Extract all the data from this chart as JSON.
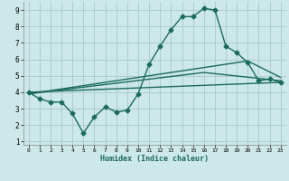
{
  "xlabel": "Humidex (Indice chaleur)",
  "bg_color": "#cce8e8",
  "grid_color": "#aac8c8",
  "line_color": "#1a6b5a",
  "xlim": [
    -0.5,
    23.5
  ],
  "ylim": [
    0.8,
    9.5
  ],
  "xticks": [
    0,
    1,
    2,
    3,
    4,
    5,
    6,
    7,
    8,
    9,
    10,
    11,
    12,
    13,
    14,
    15,
    16,
    17,
    18,
    19,
    20,
    21,
    22,
    23
  ],
  "yticks": [
    1,
    2,
    3,
    4,
    5,
    6,
    7,
    8,
    9
  ],
  "series1_x": [
    0,
    1,
    2,
    3,
    4,
    5,
    6,
    7,
    8,
    9,
    10,
    11,
    12,
    13,
    14,
    15,
    16,
    17,
    18,
    19,
    20,
    21,
    22,
    23
  ],
  "series1_y": [
    4.0,
    3.6,
    3.4,
    3.4,
    2.7,
    1.5,
    2.5,
    3.1,
    2.8,
    2.9,
    3.9,
    5.7,
    6.8,
    7.8,
    8.6,
    8.6,
    9.1,
    9.0,
    6.8,
    6.4,
    5.8,
    4.7,
    4.8,
    4.6
  ],
  "line2_x": [
    0,
    23
  ],
  "line2_y": [
    4.0,
    4.6
  ],
  "line3_x": [
    0,
    16,
    23
  ],
  "line3_y": [
    3.9,
    5.2,
    4.7
  ],
  "line4_x": [
    0,
    20,
    23
  ],
  "line4_y": [
    3.9,
    5.9,
    4.9
  ],
  "marker": "D",
  "markersize": 2.5,
  "linewidth": 1.0
}
